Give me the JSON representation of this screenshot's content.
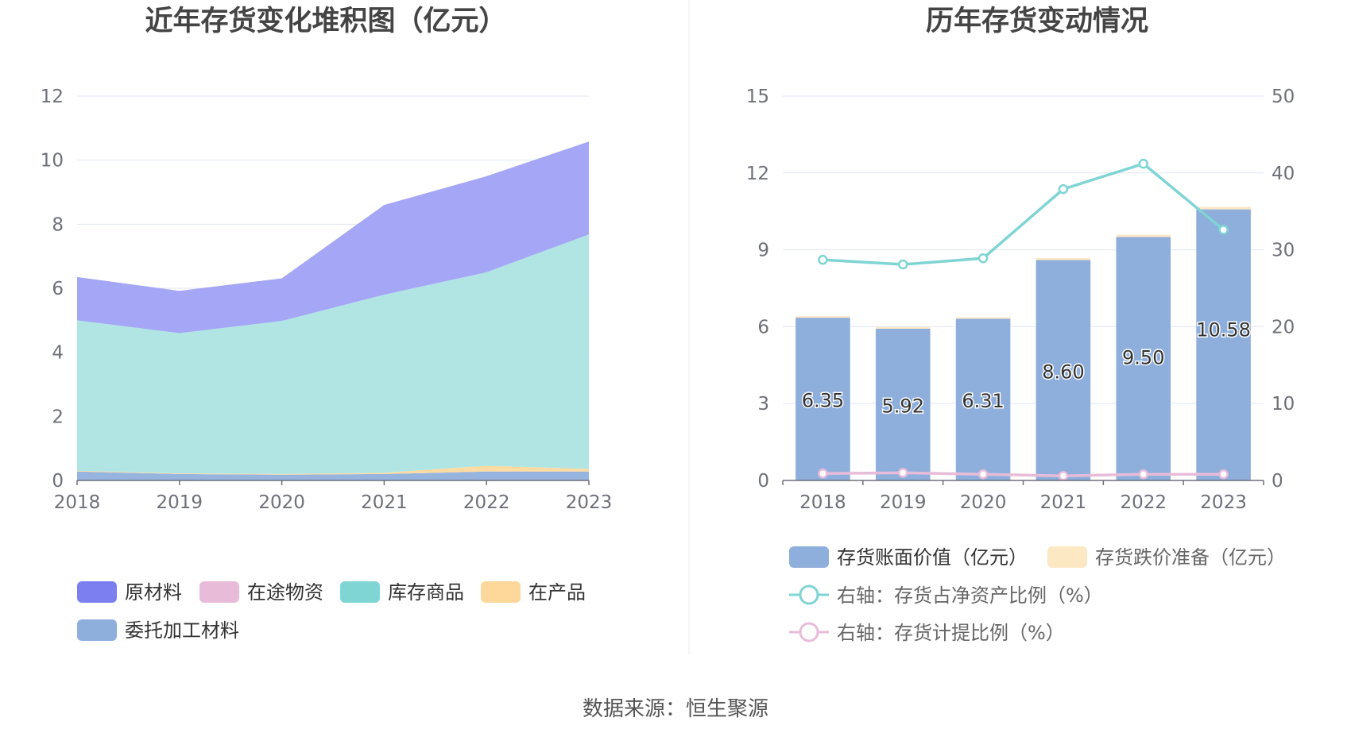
{
  "source_text": "数据来源：恒生聚源",
  "chart_data": [
    {
      "type": "area",
      "title": "近年存货变化堆积图（亿元）",
      "x": [
        "2018",
        "2019",
        "2020",
        "2021",
        "2022",
        "2023"
      ],
      "ylim": [
        0,
        12
      ],
      "yticks": [
        "0",
        "2",
        "4",
        "6",
        "8",
        "10",
        "12"
      ],
      "grid": true,
      "legend_position": "bottom",
      "stacked": true,
      "series": [
        {
          "name": "委托加工材料",
          "color": "#8eaedc",
          "values": [
            0.28,
            0.2,
            0.18,
            0.2,
            0.28,
            0.28
          ]
        },
        {
          "name": "在产品",
          "color": "#fdd89a",
          "values": [
            0.02,
            0.02,
            0.02,
            0.04,
            0.18,
            0.08
          ]
        },
        {
          "name": "库存商品",
          "color": "#a9e3e2",
          "values": [
            4.7,
            4.38,
            4.78,
            5.56,
            6.04,
            7.32
          ]
        },
        {
          "name": "在途物资",
          "color": "#e8bcd9",
          "values": [
            0.0,
            0.0,
            0.0,
            0.0,
            0.0,
            0.0
          ]
        },
        {
          "name": "原材料",
          "color": "#9da0f5",
          "values": [
            1.35,
            1.32,
            1.33,
            2.8,
            3.0,
            2.9
          ]
        }
      ],
      "legend_order": [
        "原材料",
        "在途物资",
        "库存商品",
        "在产品",
        "委托加工材料"
      ],
      "legend_colors": {
        "原材料": "#7b7ff0",
        "在途物资": "#e8bcd9",
        "库存商品": "#7fd4d4",
        "在产品": "#fdd89a",
        "委托加工材料": "#8eaedc"
      }
    },
    {
      "type": "bar",
      "title": "历年存货变动情况",
      "categories": [
        "2018",
        "2019",
        "2020",
        "2021",
        "2022",
        "2023"
      ],
      "ylim_left": [
        0,
        15
      ],
      "yticks_left": [
        "0",
        "3",
        "6",
        "9",
        "12",
        "15"
      ],
      "ylim_right": [
        0,
        50
      ],
      "yticks_right": [
        "0",
        "10",
        "20",
        "30",
        "40",
        "50"
      ],
      "grid": true,
      "legend_position": "bottom",
      "series": [
        {
          "name": "存货账面价值（亿元）",
          "kind": "bar",
          "axis": "left",
          "color": "#8eaedc",
          "values": [
            6.35,
            5.92,
            6.31,
            8.6,
            9.5,
            10.58
          ],
          "labels": [
            "6.35",
            "5.92",
            "6.31",
            "8.60",
            "9.50",
            "10.58"
          ]
        },
        {
          "name": "存货跌价准备（亿元）",
          "kind": "bar-stack",
          "axis": "left",
          "color": "#fde8c4",
          "values": [
            0.06,
            0.06,
            0.06,
            0.08,
            0.09,
            0.1
          ]
        },
        {
          "name": "右轴：存货占净资产比例（%）",
          "kind": "line",
          "axis": "right",
          "color": "#7fd4d4",
          "values": [
            28.7,
            28.1,
            28.9,
            37.9,
            41.2,
            32.6
          ]
        },
        {
          "name": "右轴：存货计提比例（%）",
          "kind": "line",
          "axis": "right",
          "color": "#e8bcd9",
          "values": [
            0.9,
            1.0,
            0.8,
            0.6,
            0.8,
            0.8
          ]
        }
      ]
    }
  ]
}
